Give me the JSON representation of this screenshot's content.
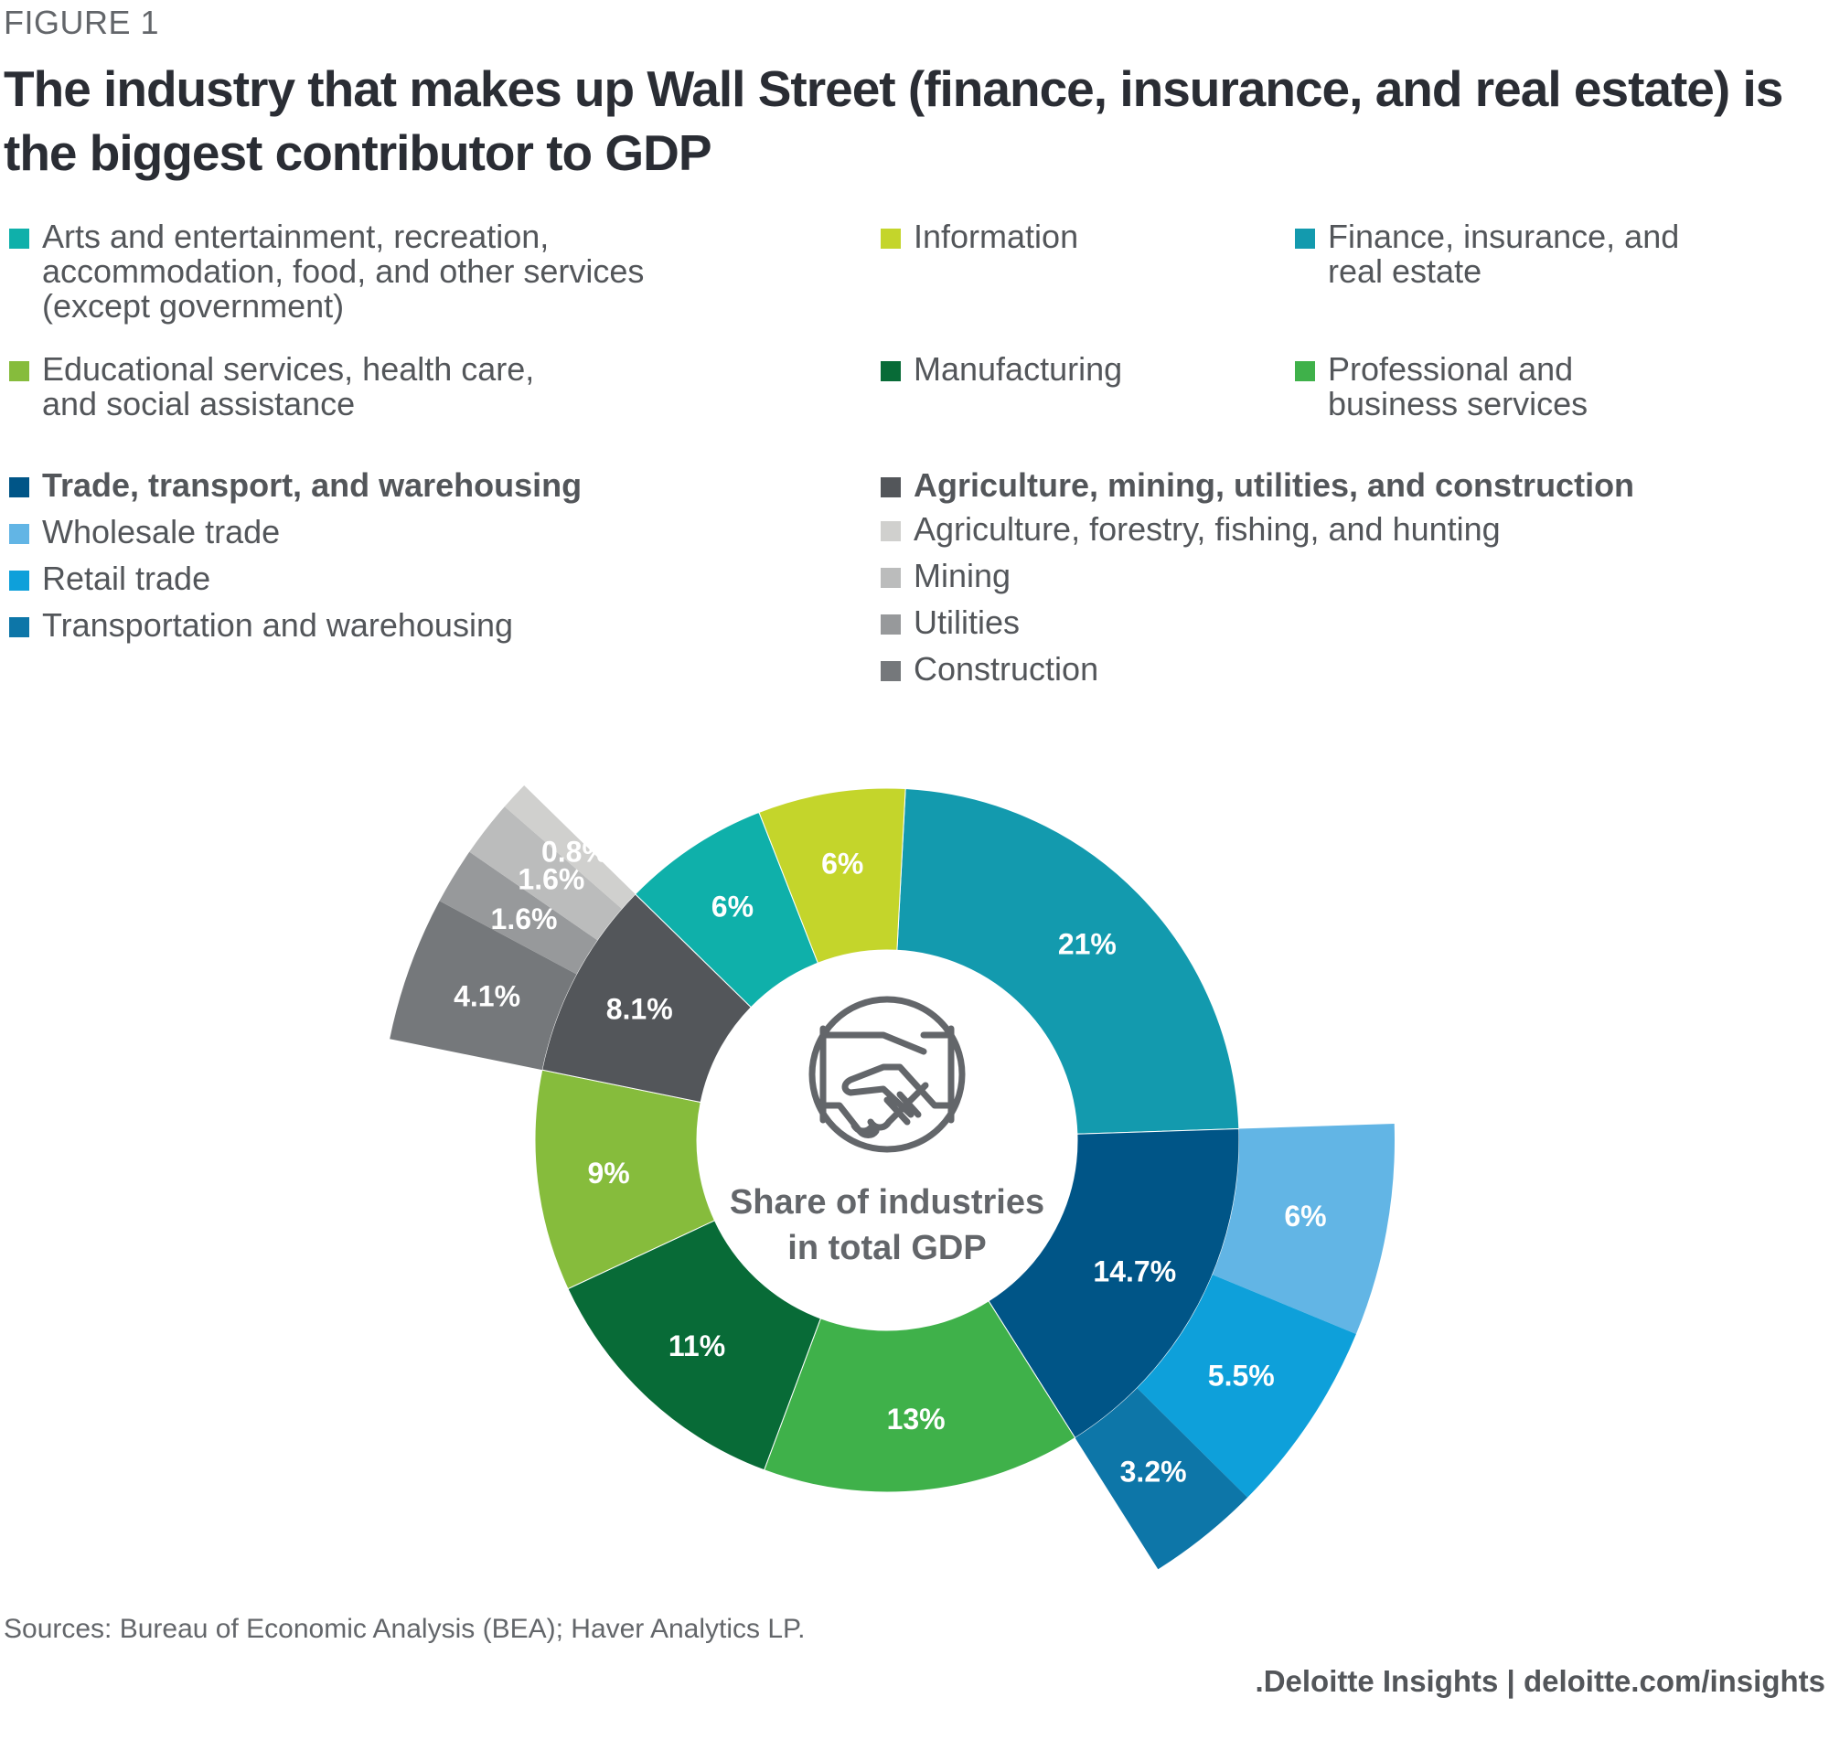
{
  "figure_label": "FIGURE 1",
  "title": "The industry that makes up Wall Street (finance, insurance, and real estate) is the biggest contributor to GDP",
  "source": "Sources: Bureau of Economic Analysis (BEA); Haver Analytics LP.",
  "brand": ".Deloitte Insights | deloitte.com/insights",
  "center_icon": "handshake-icon",
  "legend": [
    {
      "label": "Arts and entertainment, recreation,\naccommodation, food, and other services\n(except government)",
      "color": "#0fb0aa",
      "bold": false
    },
    {
      "label": "Information",
      "color": "#c4d52b",
      "bold": false
    },
    {
      "label": "Finance, insurance, and\nreal estate",
      "color": "#139aae",
      "bold": false
    },
    {
      "label": "Educational services, health care,\nand social assistance",
      "color": "#86bc3c",
      "bold": false
    },
    {
      "label": "Manufacturing",
      "color": "#086b37",
      "bold": false
    },
    {
      "label": "Professional and\nbusiness services",
      "color": "#3fb14a",
      "bold": false
    },
    {
      "label": "Trade, transport, and warehousing",
      "color": "#005587",
      "bold": true
    },
    {
      "label": "Wholesale trade",
      "color": "#62b5e5",
      "bold": false
    },
    {
      "label": "Retail trade",
      "color": "#0ea0da",
      "bold": false
    },
    {
      "label": "Transportation and warehousing",
      "color": "#0d76a8",
      "bold": false
    },
    {
      "label": "Agriculture, mining, utilities, and construction",
      "color": "#53565a",
      "bold": true
    },
    {
      "label": "Agriculture, forestry, fishing, and hunting",
      "color": "#d0d0ce",
      "bold": false
    },
    {
      "label": "Mining",
      "color": "#bbbcbc",
      "bold": false
    },
    {
      "label": "Utilities",
      "color": "#97999b",
      "bold": false
    },
    {
      "label": "Construction",
      "color": "#75787b",
      "bold": false
    }
  ],
  "chart_data": {
    "type": "pie",
    "variant": "sunburst-donut",
    "center_label": "Share of industries\nin total GDP",
    "unit": "%",
    "series": [
      {
        "name": "Finance, insurance, and real estate",
        "value": 21,
        "label": "21%",
        "color": "#139aae"
      },
      {
        "name": "Trade, transport, and warehousing",
        "value": 14.7,
        "label": "14.7%",
        "color": "#005587",
        "children": [
          {
            "name": "Wholesale trade",
            "value": 6,
            "label": "6%",
            "color": "#62b5e5"
          },
          {
            "name": "Retail trade",
            "value": 5.5,
            "label": "5.5%",
            "color": "#0ea0da"
          },
          {
            "name": "Transportation and warehousing",
            "value": 3.2,
            "label": "3.2%",
            "color": "#0d76a8"
          }
        ]
      },
      {
        "name": "Professional and business services",
        "value": 13,
        "label": "13%",
        "color": "#3fb14a"
      },
      {
        "name": "Manufacturing",
        "value": 11,
        "label": "11%",
        "color": "#086b37"
      },
      {
        "name": "Educational services, health care, and social assistance",
        "value": 9,
        "label": "9%",
        "color": "#86bc3c"
      },
      {
        "name": "Agriculture, mining, utilities, and construction",
        "value": 8.1,
        "label": "8.1%",
        "color": "#53565a",
        "children": [
          {
            "name": "Construction",
            "value": 4.1,
            "label": "4.1%",
            "color": "#75787b"
          },
          {
            "name": "Utilities",
            "value": 1.6,
            "label": "1.6%",
            "color": "#97999b"
          },
          {
            "name": "Mining",
            "value": 1.6,
            "label": "1.6%",
            "color": "#bbbcbc"
          },
          {
            "name": "Agriculture, forestry, fishing, and hunting",
            "value": 0.8,
            "label": "0.8%",
            "color": "#d0d0ce"
          }
        ]
      },
      {
        "name": "Arts and entertainment, recreation, accommodation, food, and other services (except government)",
        "value": 6,
        "label": "6%",
        "color": "#0fb0aa"
      },
      {
        "name": "Information",
        "value": 6,
        "label": "6%",
        "color": "#c4d52b"
      }
    ]
  }
}
